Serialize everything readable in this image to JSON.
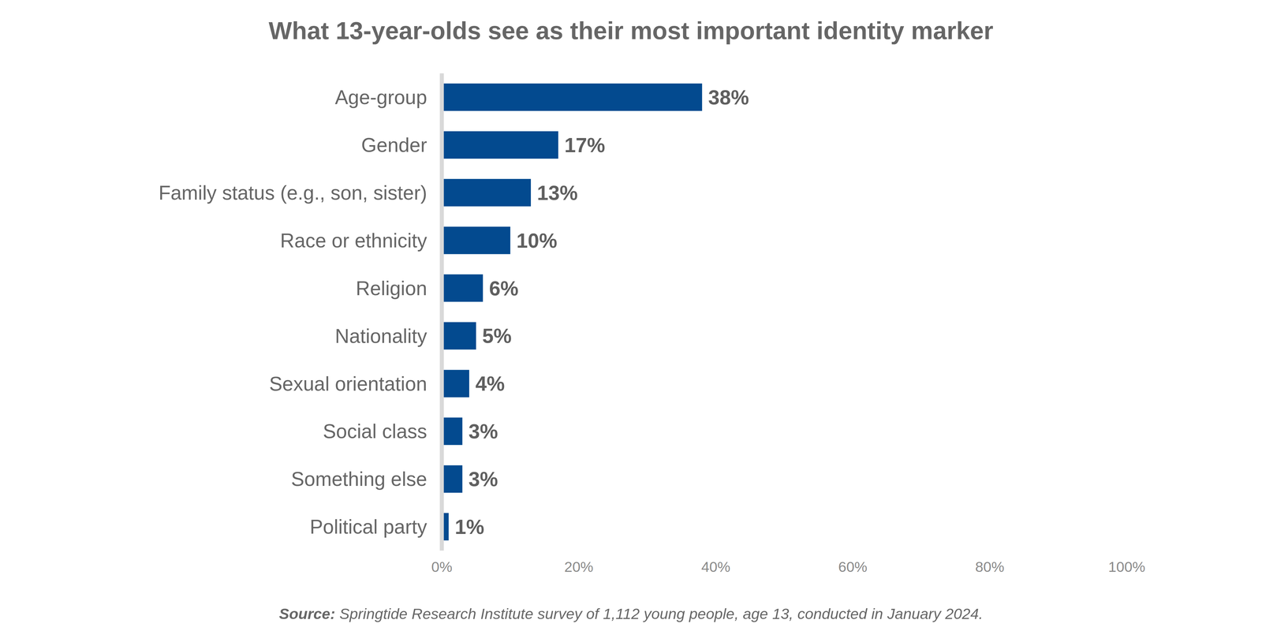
{
  "chart_data": {
    "type": "bar",
    "title": "What 13-year-olds see as their most important identity marker",
    "categories": [
      "Age-group",
      "Gender",
      "Family status (e.g., son, sister)",
      "Race or ethnicity",
      "Religion",
      "Nationality",
      "Sexual orientation",
      "Social class",
      "Something else",
      "Political party"
    ],
    "values": [
      38,
      17,
      13,
      10,
      6,
      5,
      4,
      3,
      3,
      1
    ],
    "value_labels": [
      "38%",
      "17%",
      "13%",
      "10%",
      "6%",
      "5%",
      "4%",
      "3%",
      "3%",
      "1%"
    ],
    "color": "#034a8f",
    "orientation": "horizontal",
    "data_labels": true,
    "grid": false,
    "xlim": [
      0,
      100
    ],
    "xticks": [
      {
        "value": 0,
        "label": "0%"
      },
      {
        "value": 20,
        "label": "20%"
      },
      {
        "value": 40,
        "label": "40%"
      },
      {
        "value": 60,
        "label": "60%"
      },
      {
        "value": 80,
        "label": "80%"
      },
      {
        "value": 100,
        "label": "100%"
      }
    ],
    "source": {
      "label": "Source:",
      "text": "Springtide Research Institute survey of 1,112 young people, age 13, conducted in January 2024."
    }
  }
}
